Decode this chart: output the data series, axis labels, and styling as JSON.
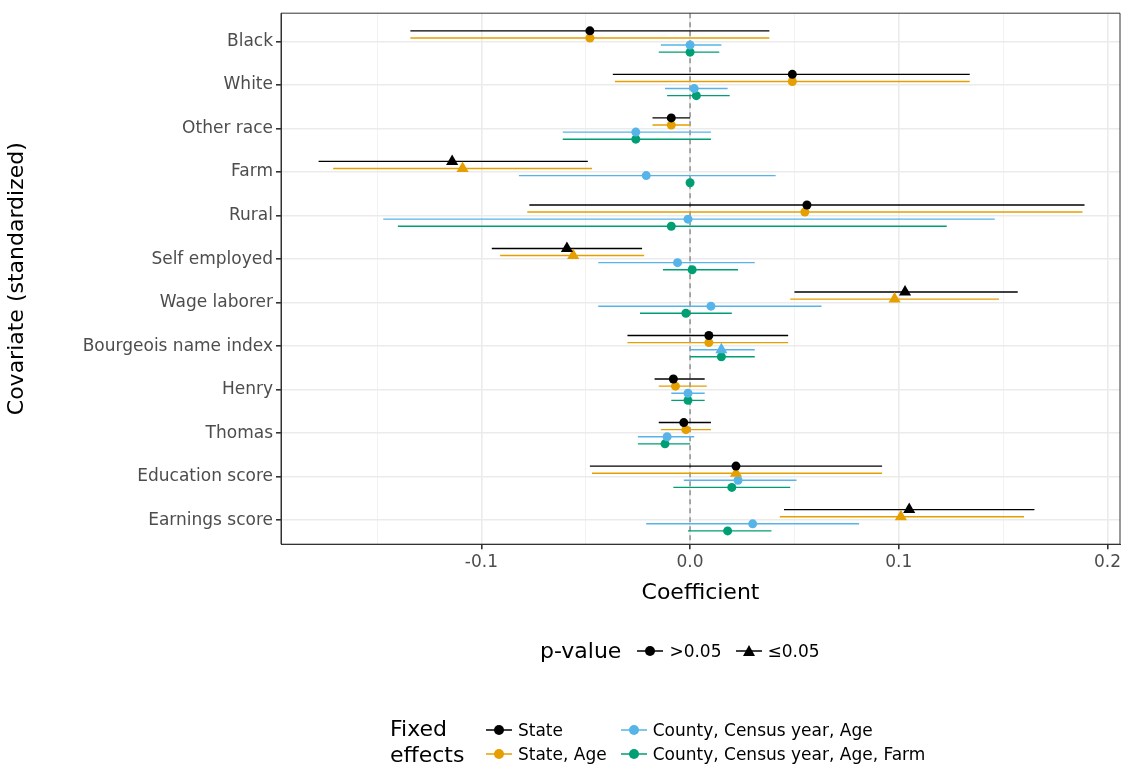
{
  "chart_data": {
    "type": "scatter",
    "orientation": "horizontal",
    "xlabel": "Coefficient",
    "ylabel": "Covariate (standardized)",
    "legend_title": "Fixed effects",
    "legend": "bottom",
    "grid": true,
    "annotations": [
      "p-value",
      ">0.05",
      "≤0.05"
    ],
    "categories": [
      "Black",
      "White",
      "Other race",
      "Farm",
      "Rural",
      "Self employed",
      "Wage laborer",
      "Bourgeois name index",
      "Henry",
      "Thomas",
      "Education score",
      "Earnings score"
    ],
    "xlim": [
      -0.196,
      0.206
    ],
    "xticks": [
      {
        "value": -0.15,
        "label": null
      },
      {
        "value": -0.1,
        "label": "-0.1"
      },
      {
        "value": -0.05,
        "label": null
      },
      {
        "value": 0,
        "label": "0.0"
      },
      {
        "value": 0.05,
        "label": null
      },
      {
        "value": 0.1,
        "label": "0.1"
      },
      {
        "value": 0.15,
        "label": null
      },
      {
        "value": 0.2,
        "label": "0.2"
      }
    ],
    "ref_lines": [
      {
        "axis": "x",
        "value": 0,
        "color": "#808080",
        "line_style": "dashed"
      }
    ],
    "series": [
      {
        "name": "State",
        "color": "#000000",
        "values": [
          -0.048,
          0.049,
          -0.009,
          -0.114,
          0.056,
          -0.059,
          0.103,
          0.009,
          -0.008,
          -0.003,
          0.022,
          0.105
        ],
        "errors": [
          [
            -0.134,
            0.038
          ],
          [
            -0.037,
            0.134
          ],
          [
            -0.018,
            0.0
          ],
          [
            -0.178,
            -0.049
          ],
          [
            -0.077,
            0.189
          ],
          [
            -0.095,
            -0.023
          ],
          [
            0.05,
            0.157
          ],
          [
            -0.03,
            0.047
          ],
          [
            -0.017,
            0.007
          ],
          [
            -0.015,
            0.01
          ],
          [
            -0.048,
            0.092
          ],
          [
            0.045,
            0.165
          ]
        ],
        "marker": [
          "circle",
          "circle",
          "circle",
          "triangle",
          "circle",
          "triangle",
          "triangle",
          "circle",
          "circle",
          "circle",
          "circle",
          "triangle"
        ]
      },
      {
        "name": "State, Age",
        "color": "#e69f00",
        "values": [
          -0.048,
          0.049,
          -0.009,
          -0.109,
          0.055,
          -0.056,
          0.098,
          0.009,
          -0.007,
          -0.002,
          0.022,
          0.101
        ],
        "errors": [
          [
            -0.134,
            0.038
          ],
          [
            -0.036,
            0.134
          ],
          [
            -0.018,
            0.0
          ],
          [
            -0.171,
            -0.047
          ],
          [
            -0.078,
            0.188
          ],
          [
            -0.091,
            -0.022
          ],
          [
            0.048,
            0.148
          ],
          [
            -0.03,
            0.047
          ],
          [
            -0.015,
            0.008
          ],
          [
            -0.014,
            0.01
          ],
          [
            -0.047,
            0.092
          ],
          [
            0.043,
            0.16
          ]
        ],
        "marker": [
          "circle",
          "circle",
          "circle",
          "triangle",
          "circle",
          "triangle",
          "triangle",
          "circle",
          "circle",
          "circle",
          "triangle",
          "triangle"
        ]
      },
      {
        "name": "County, Census year, Age",
        "color": "#56b4e9",
        "values": [
          0.0,
          0.002,
          -0.026,
          -0.021,
          -0.001,
          -0.006,
          0.01,
          0.015,
          -0.001,
          -0.011,
          0.023,
          0.03
        ],
        "errors": [
          [
            -0.014,
            0.015
          ],
          [
            -0.012,
            0.018
          ],
          [
            -0.061,
            0.01
          ],
          [
            -0.082,
            0.041
          ],
          [
            -0.147,
            0.146
          ],
          [
            -0.044,
            0.031
          ],
          [
            -0.044,
            0.063
          ],
          [
            0.0,
            0.031
          ],
          [
            -0.009,
            0.007
          ],
          [
            -0.025,
            0.002
          ],
          [
            -0.003,
            0.051
          ],
          [
            -0.021,
            0.081
          ]
        ],
        "marker": [
          "circle",
          "circle",
          "circle",
          "circle",
          "circle",
          "circle",
          "circle",
          "triangle",
          "circle",
          "circle",
          "circle",
          "circle"
        ]
      },
      {
        "name": "County, Census year, Age, Farm",
        "color": "#009e73",
        "values": [
          0.0,
          0.003,
          -0.026,
          0.0,
          -0.009,
          0.001,
          -0.002,
          0.015,
          -0.001,
          -0.012,
          0.02,
          0.018
        ],
        "errors": [
          [
            -0.015,
            0.014
          ],
          [
            -0.011,
            0.019
          ],
          [
            -0.061,
            0.01
          ],
          null,
          [
            -0.14,
            0.123
          ],
          [
            -0.013,
            0.023
          ],
          [
            -0.024,
            0.02
          ],
          [
            0.0,
            0.031
          ],
          [
            -0.009,
            0.007
          ],
          [
            -0.025,
            0.0
          ],
          [
            -0.008,
            0.048
          ],
          [
            -0.001,
            0.039
          ]
        ],
        "marker": [
          "circle",
          "circle",
          "circle",
          "circle",
          "circle",
          "circle",
          "circle",
          "circle",
          "circle",
          "circle",
          "circle",
          "circle"
        ]
      }
    ]
  }
}
